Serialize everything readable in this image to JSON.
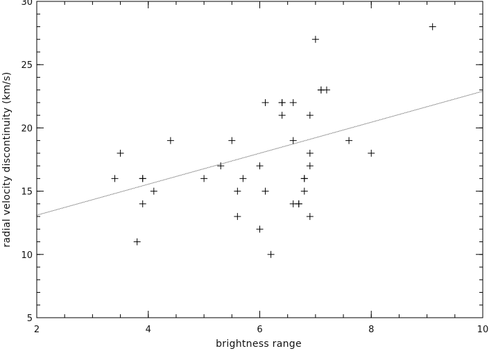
{
  "chart_data": {
    "type": "scatter",
    "title": "",
    "xlabel": "brightness range",
    "ylabel": "radial velocity discontinuity (km/s)",
    "xlim": [
      2,
      10
    ],
    "ylim": [
      5,
      30
    ],
    "x_ticks": [
      2,
      4,
      6,
      8,
      10
    ],
    "y_ticks": [
      5,
      10,
      15,
      20,
      25,
      30
    ],
    "x_minor_step": 0.5,
    "y_minor_step": 1,
    "grid": false,
    "legend": "none",
    "marker": "plus",
    "colors": {
      "marker": "#000000",
      "fit_line": "#555555",
      "axes": "#000000"
    },
    "series": [
      {
        "points": [
          [
            3.4,
            16
          ],
          [
            3.5,
            18
          ],
          [
            3.8,
            11
          ],
          [
            3.9,
            16
          ],
          [
            3.9,
            16
          ],
          [
            3.9,
            14
          ],
          [
            4.1,
            15
          ],
          [
            4.4,
            19
          ],
          [
            5.0,
            16
          ],
          [
            5.3,
            17
          ],
          [
            5.5,
            19
          ],
          [
            5.6,
            15
          ],
          [
            5.6,
            13
          ],
          [
            5.7,
            16
          ],
          [
            6.0,
            17
          ],
          [
            6.0,
            12
          ],
          [
            6.1,
            22
          ],
          [
            6.1,
            15
          ],
          [
            6.2,
            10
          ],
          [
            6.4,
            22
          ],
          [
            6.4,
            22
          ],
          [
            6.4,
            21
          ],
          [
            6.6,
            22
          ],
          [
            6.6,
            19
          ],
          [
            6.6,
            14
          ],
          [
            6.7,
            14
          ],
          [
            6.7,
            14
          ],
          [
            6.8,
            16
          ],
          [
            6.8,
            16
          ],
          [
            6.8,
            15
          ],
          [
            6.9,
            21
          ],
          [
            6.9,
            18
          ],
          [
            6.9,
            17
          ],
          [
            6.9,
            13
          ],
          [
            7.0,
            27
          ],
          [
            7.1,
            23
          ],
          [
            7.1,
            23
          ],
          [
            7.2,
            23
          ],
          [
            7.6,
            19
          ],
          [
            8.0,
            18
          ],
          [
            9.1,
            28
          ]
        ]
      }
    ],
    "fit_line": {
      "x": [
        2,
        10
      ],
      "y": [
        13.1,
        22.9
      ]
    }
  }
}
